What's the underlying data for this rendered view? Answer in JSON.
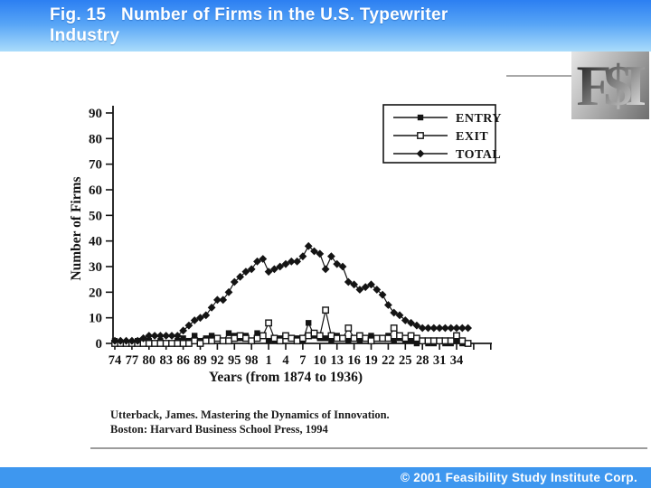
{
  "title_bar": {
    "line1": "Fig. 15   Number of Firms in the U.S. Typewriter",
    "line2": "Industry"
  },
  "logo": {
    "text": "F$I"
  },
  "chart_data": {
    "type": "line",
    "title": "",
    "xlabel": "Years (from 1874 to 1936)",
    "ylabel": "Number of Firms",
    "start_year": 1874,
    "end_year": 1936,
    "ylim": [
      0,
      90
    ],
    "y_tick_step": 10,
    "x_tick_step_years": 3,
    "x_tick_labels": [
      "74",
      "77",
      "80",
      "83",
      "86",
      "89",
      "92",
      "95",
      "98",
      "1",
      "4",
      "7",
      "10",
      "13",
      "16",
      "19",
      "22",
      "25",
      "28",
      "31",
      "34"
    ],
    "grid": false,
    "legend_position": "top-right",
    "series": [
      {
        "name": "ENTRY",
        "marker": "filled-square",
        "values": [
          1,
          0,
          0,
          0,
          1,
          1,
          1,
          0,
          1,
          0,
          0,
          1,
          2,
          1,
          3,
          1,
          2,
          3,
          2,
          1,
          4,
          3,
          2,
          3,
          1,
          4,
          3,
          1,
          1,
          2,
          3,
          2,
          2,
          1,
          8,
          3,
          2,
          2,
          1,
          3,
          2,
          1,
          2,
          1,
          2,
          3,
          2,
          2,
          3,
          1,
          2,
          1,
          1,
          0,
          1,
          0,
          0,
          1,
          0,
          0,
          1,
          0,
          0
        ]
      },
      {
        "name": "EXIT",
        "marker": "open-square",
        "values": [
          0,
          0,
          0,
          0,
          0,
          0,
          0,
          0,
          0,
          0,
          0,
          0,
          0,
          0,
          1,
          0,
          1,
          1,
          2,
          1,
          1,
          2,
          3,
          2,
          1,
          2,
          3,
          8,
          2,
          1,
          3,
          2,
          1,
          2,
          3,
          4,
          3,
          13,
          3,
          2,
          2,
          6,
          2,
          3,
          2,
          1,
          2,
          2,
          2,
          6,
          3,
          2,
          3,
          2,
          1,
          1,
          1,
          1,
          1,
          1,
          3,
          1,
          0
        ]
      },
      {
        "name": "TOTAL",
        "marker": "filled-diamond",
        "values": [
          1,
          1,
          1,
          1,
          1,
          2,
          3,
          3,
          3,
          3,
          3,
          3,
          5,
          7,
          9,
          10,
          11,
          14,
          17,
          17,
          20,
          24,
          26,
          28,
          29,
          32,
          33,
          28,
          29,
          30,
          31,
          32,
          32,
          34,
          38,
          36,
          35,
          29,
          34,
          31,
          30,
          24,
          23,
          21,
          22,
          23,
          21,
          19,
          15,
          12,
          11,
          9,
          8,
          7,
          6,
          6,
          6,
          6,
          6,
          6,
          6,
          6,
          6
        ]
      }
    ]
  },
  "citation": {
    "line1": "Utterback, James.  Mastering the Dynamics of Innovation.",
    "line2": "Boston: Harvard Business School Press, 1994"
  },
  "footer": {
    "copyright": "© 2001 Feasibility Study Institute Corp."
  },
  "colors": {
    "title_gradient_top": "#2c7ff2",
    "title_gradient_bottom": "#aadcfb",
    "footer_blue": "#3e97ef",
    "series_color": "#141414",
    "logo_gray_dark": "#6e6e6e",
    "logo_gray_light": "#e6e6e6",
    "divider_gray": "#9c9c9c"
  }
}
